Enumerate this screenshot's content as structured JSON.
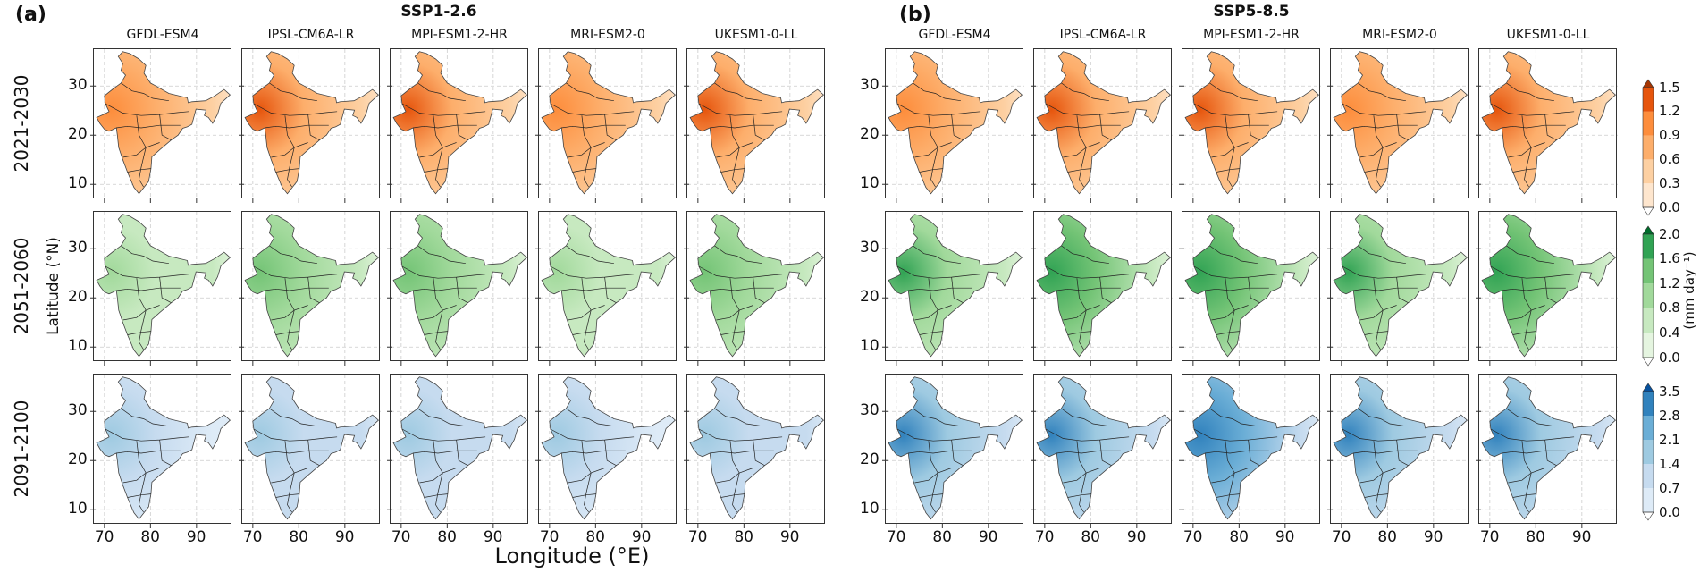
{
  "panel_labels": {
    "a": "(a)",
    "b": "(b)"
  },
  "scenarios": [
    "SSP1-2.6",
    "SSP5-8.5"
  ],
  "models": [
    "GFDL-ESM4",
    "IPSL-CM6A-LR",
    "MPI-ESM1-2-HR",
    "MRI-ESM2-0",
    "UKESM1-0-LL"
  ],
  "periods": [
    "2021-2030",
    "2051-2060",
    "2091-2100"
  ],
  "xlabel": "Longitude (°E)",
  "ylabel": "Latitude (°N)",
  "x_ticks": [
    "70",
    "80",
    "90"
  ],
  "y_ticks": [
    "10",
    "20",
    "30"
  ],
  "colorbar_label": "(mm day⁻¹)",
  "colorbars": [
    {
      "ticks": [
        "0.0",
        "0.3",
        "0.6",
        "0.9",
        "1.2",
        "1.5"
      ],
      "colors": [
        "#fee6ce",
        "#fdd0a2",
        "#fdae6b",
        "#fd8d3c",
        "#e6550d",
        "#a63603"
      ]
    },
    {
      "ticks": [
        "0.0",
        "0.4",
        "0.8",
        "1.2",
        "1.6",
        "2.0"
      ],
      "colors": [
        "#e5f5e0",
        "#c7e9c0",
        "#a1d99b",
        "#74c476",
        "#31a354",
        "#006d2c"
      ]
    },
    {
      "ticks": [
        "0.0",
        "0.7",
        "1.4",
        "2.1",
        "2.8",
        "3.5"
      ],
      "colors": [
        "#deebf7",
        "#c6dbef",
        "#9ecae1",
        "#6baed6",
        "#3182bd",
        "#08519c"
      ]
    }
  ]
}
